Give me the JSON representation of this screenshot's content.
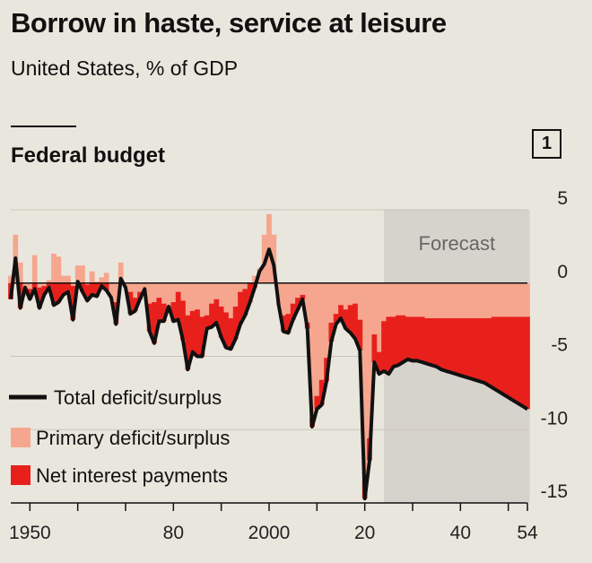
{
  "header": {
    "title": "Borrow in haste, service at leisure",
    "subtitle": "United States, % of GDP",
    "panel_label": "Federal budget",
    "panel_number": "1"
  },
  "colors": {
    "background": "#e9e6dd",
    "forecast_band": "#d6d3cc",
    "primary": "#f6a68e",
    "interest": "#e8201c",
    "total": "#111111"
  },
  "chart_data": {
    "type": "bar",
    "x_range": [
      1946,
      2054
    ],
    "ylim": [
      -15,
      5
    ],
    "y_ticks": [
      5,
      0,
      -5,
      -10,
      -15
    ],
    "y_tick_labels": [
      "5",
      "0",
      "-5",
      "-10",
      "-15"
    ],
    "x_ticks": [
      1950,
      1960,
      1970,
      1980,
      1990,
      2000,
      2010,
      2020,
      2030,
      2040,
      2050,
      2054
    ],
    "x_tick_labels": [
      {
        "x": 1950,
        "label": "1950"
      },
      {
        "x": 1980,
        "label": "80"
      },
      {
        "x": 2000,
        "label": "2000"
      },
      {
        "x": 2020,
        "label": "20"
      },
      {
        "x": 2040,
        "label": "40"
      },
      {
        "x": 2054,
        "label": "54"
      }
    ],
    "forecast": {
      "label": "Forecast",
      "start": 2024,
      "end": 2054
    },
    "legend": [
      {
        "key": "total",
        "label": "Total deficit/surplus"
      },
      {
        "key": "primary",
        "label": "Primary deficit/surplus"
      },
      {
        "key": "interest",
        "label": "Net interest payments"
      }
    ],
    "years": [
      1946,
      1947,
      1948,
      1949,
      1950,
      1951,
      1952,
      1953,
      1954,
      1955,
      1956,
      1957,
      1958,
      1959,
      1960,
      1961,
      1962,
      1963,
      1964,
      1965,
      1966,
      1967,
      1968,
      1969,
      1970,
      1971,
      1972,
      1973,
      1974,
      1975,
      1976,
      1977,
      1978,
      1979,
      1980,
      1981,
      1982,
      1983,
      1984,
      1985,
      1986,
      1987,
      1988,
      1989,
      1990,
      1991,
      1992,
      1993,
      1994,
      1995,
      1996,
      1997,
      1998,
      1999,
      2000,
      2001,
      2002,
      2003,
      2004,
      2005,
      2006,
      2007,
      2008,
      2009,
      2010,
      2011,
      2012,
      2013,
      2014,
      2015,
      2016,
      2017,
      2018,
      2019,
      2020,
      2021,
      2022,
      2023,
      2024,
      2025,
      2026,
      2027,
      2028,
      2029,
      2030,
      2031,
      2032,
      2033,
      2034,
      2035,
      2036,
      2037,
      2038,
      2039,
      2040,
      2041,
      2042,
      2043,
      2044,
      2045,
      2046,
      2047,
      2048,
      2049,
      2050,
      2051,
      2052,
      2053,
      2054
    ],
    "primary": [
      0.5,
      3.3,
      1.4,
      -0.9,
      -0.4,
      1.9,
      -0.3,
      -0.2,
      0.2,
      2.0,
      1.8,
      0.5,
      0.5,
      -0.2,
      1.2,
      1.2,
      -0.1,
      0.8,
      0.1,
      0.4,
      0.7,
      -1.0,
      -1.3,
      1.4,
      -0.3,
      -0.6,
      -1.0,
      -0.6,
      -0.6,
      -1.4,
      -1.3,
      -1.0,
      -1.4,
      -1.8,
      -1.3,
      -0.6,
      -1.2,
      -2.2,
      -1.9,
      -1.8,
      -2.3,
      -2.2,
      -1.4,
      -1.1,
      -1.6,
      -2.0,
      -2.4,
      -1.6,
      -0.6,
      -0.4,
      0.0,
      0.5,
      1.0,
      3.3,
      4.7,
      3.3,
      -1.5,
      -2.2,
      -2.1,
      -1.4,
      -1.0,
      -0.8,
      -2.7,
      -9.2,
      -7.7,
      -6.6,
      -5.1,
      -2.7,
      -2.1,
      -1.5,
      -1.8,
      -1.5,
      -1.4,
      -2.5,
      -13.5,
      -10.6,
      -3.5,
      -4.7,
      -2.6,
      -2.3,
      -2.3,
      -2.2,
      -2.2,
      -2.3,
      -2.3,
      -2.3,
      -2.3,
      -2.4,
      -2.4,
      -2.4,
      -2.4,
      -2.4,
      -2.4,
      -2.4,
      -2.4,
      -2.4,
      -2.4,
      -2.4,
      -2.4,
      -2.4,
      -2.4,
      -2.3,
      -2.3,
      -2.3,
      -2.3,
      -2.3,
      -2.3,
      -2.3,
      -2.3
    ],
    "total": [
      -1.1,
      1.7,
      -1.7,
      -0.3,
      -1.1,
      -0.4,
      -1.7,
      -0.8,
      -0.3,
      -1.5,
      -1.3,
      -0.8,
      -0.6,
      -2.5,
      0.1,
      -0.6,
      -1.2,
      -0.8,
      -0.9,
      -0.2,
      -0.5,
      -1.0,
      -2.8,
      0.3,
      -0.3,
      -2.1,
      -1.9,
      -1.1,
      -0.4,
      -3.3,
      -4.1,
      -2.6,
      -2.6,
      -1.6,
      -2.6,
      -2.5,
      -3.9,
      -5.9,
      -4.7,
      -5.0,
      -5.0,
      -3.1,
      -3.0,
      -2.7,
      -3.7,
      -4.4,
      -4.5,
      -3.8,
      -2.8,
      -2.2,
      -1.3,
      -0.3,
      0.8,
      1.3,
      2.3,
      1.2,
      -1.5,
      -3.3,
      -3.4,
      -2.5,
      -1.8,
      -1.1,
      -3.1,
      -9.8,
      -8.6,
      -8.3,
      -6.7,
      -4.0,
      -2.8,
      -2.4,
      -3.1,
      -3.4,
      -3.8,
      -4.6,
      -14.7,
      -12.1,
      -5.4,
      -6.2,
      -6.0,
      -6.2,
      -5.7,
      -5.6,
      -5.4,
      -5.2,
      -5.3,
      -5.3,
      -5.4,
      -5.5,
      -5.6,
      -5.7,
      -5.9,
      -6.0,
      -6.1,
      -6.2,
      -6.3,
      -6.4,
      -6.5,
      -6.6,
      -6.7,
      -6.8,
      -7.0,
      -7.2,
      -7.4,
      -7.6,
      -7.8,
      -8.0,
      -8.2,
      -8.4,
      -8.6
    ]
  }
}
